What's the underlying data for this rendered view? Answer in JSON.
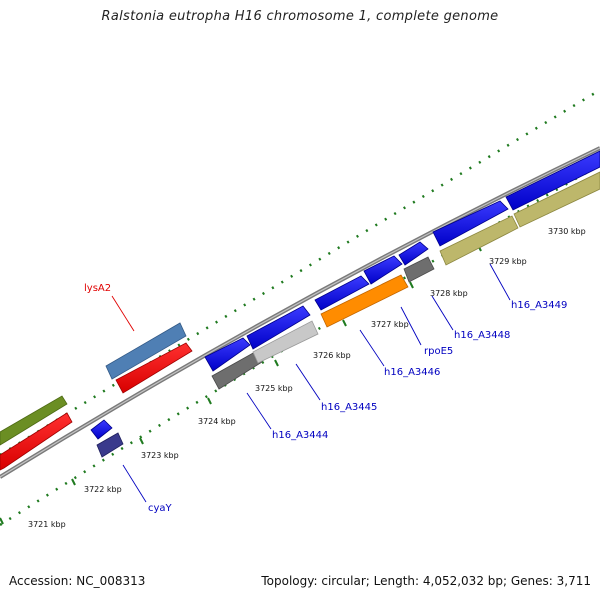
{
  "title": "Ralstonia eutropha H16 chromosome 1, complete genome",
  "footer": {
    "accession": "Accession: NC_008313",
    "summary": "Topology: circular; Length: 4,052,032 bp; Genes: 3,711"
  },
  "scale_labels": [
    "3721 kbp",
    "3722 kbp",
    "3723 kbp",
    "3724 kbp",
    "3725 kbp",
    "3726 kbp",
    "3727 kbp",
    "3728 kbp",
    "3729 kbp",
    "3730 kbp"
  ],
  "gene_labels": [
    {
      "name": "lysA2",
      "color": "#e00000"
    },
    {
      "name": "cyaY",
      "color": "#0000c0"
    },
    {
      "name": "h16_A3444",
      "color": "#0000c0"
    },
    {
      "name": "h16_A3445",
      "color": "#0000c0"
    },
    {
      "name": "h16_A3446",
      "color": "#0000c0"
    },
    {
      "name": "rpoE5",
      "color": "#0000c0"
    },
    {
      "name": "h16_A3448",
      "color": "#0000c0"
    },
    {
      "name": "h16_A3449",
      "color": "#0000c0"
    }
  ],
  "colors": {
    "backbone": "#8a8a8a",
    "tick": "#1f7a1f",
    "cds_blue": "#0000ee",
    "cds_red": "#ff0000",
    "cds_green": "#6b8e23",
    "cds_steel": "#4f7fb4",
    "cds_navy": "#3a3a8c",
    "cds_orange": "#ff8c00",
    "cds_khaki": "#bdb76b",
    "cds_gray": "#6e6e6e",
    "cds_silver": "#c8c8c8"
  }
}
